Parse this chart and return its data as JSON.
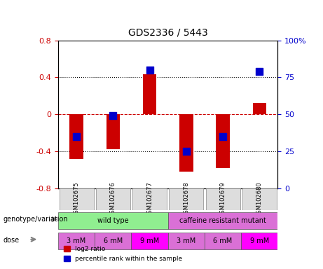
{
  "title": "GDS2336 / 5443",
  "samples": [
    "GSM102675",
    "GSM102676",
    "GSM102677",
    "GSM102678",
    "GSM102679",
    "GSM102680"
  ],
  "log2_ratios": [
    -0.48,
    -0.38,
    0.43,
    -0.62,
    -0.58,
    0.12
  ],
  "percentile_ranks": [
    35,
    49,
    80,
    25,
    35,
    79
  ],
  "genotype_groups": [
    {
      "label": "wild type",
      "span": [
        0,
        3
      ],
      "color": "#90EE90"
    },
    {
      "label": "caffeine resistant mutant",
      "span": [
        3,
        6
      ],
      "color": "#DA70D6"
    }
  ],
  "doses": [
    "3 mM",
    "6 mM",
    "9 mM",
    "3 mM",
    "6 mM",
    "9 mM"
  ],
  "dose_colors": [
    "#DA70D6",
    "#DA70D6",
    "#FF00FF",
    "#DA70D6",
    "#DA70D6",
    "#FF00FF"
  ],
  "ylim_left": [
    -0.8,
    0.8
  ],
  "ylim_right": [
    0,
    100
  ],
  "yticks_left": [
    -0.8,
    -0.4,
    0,
    0.4,
    0.8
  ],
  "yticks_right": [
    0,
    25,
    50,
    75,
    100
  ],
  "bar_color": "#CC0000",
  "dot_color": "#0000CC",
  "hline_color": "#CC0000",
  "dot_label": "percentile rank within the sample",
  "bar_label": "log2 ratio",
  "xlabel_color": "black",
  "left_axis_color": "#CC0000",
  "right_axis_color": "#0000CC",
  "genotype_label": "genotype/variation",
  "dose_label": "dose",
  "background_color": "#ffffff",
  "plot_bg_color": "#ffffff",
  "grid_color": "black",
  "tick_area_color": "#cccccc"
}
